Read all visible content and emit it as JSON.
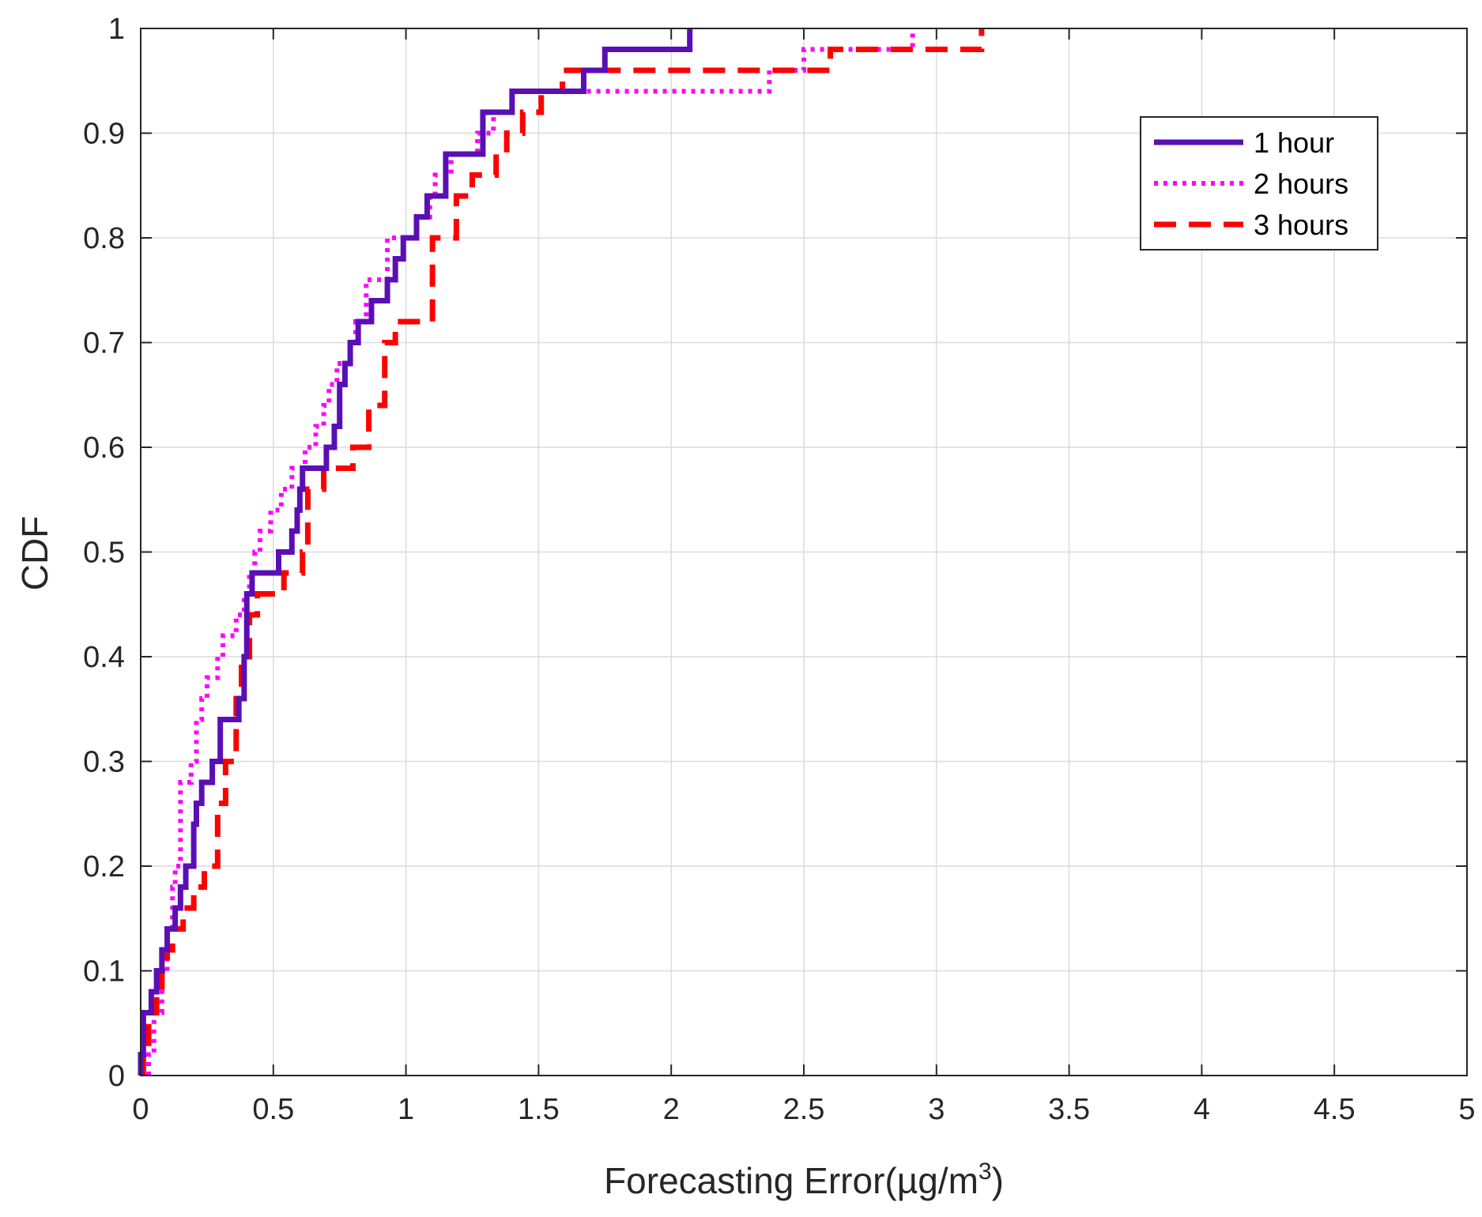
{
  "chart_data": {
    "type": "line",
    "step": true,
    "title": "",
    "xlabel": "Forecasting Error(µg/m",
    "xlabel_superscript": "3",
    "xlabel_suffix": ")",
    "ylabel": "CDF",
    "xlim": [
      0,
      5
    ],
    "ylim": [
      0,
      1
    ],
    "xticks": [
      0,
      0.5,
      1,
      1.5,
      2,
      2.5,
      3,
      3.5,
      4,
      4.5,
      5
    ],
    "xtick_labels": [
      "0",
      "0.5",
      "1",
      "1.5",
      "2",
      "2.5",
      "3",
      "3.5",
      "4",
      "4.5",
      "5"
    ],
    "yticks": [
      0,
      0.1,
      0.2,
      0.3,
      0.4,
      0.5,
      0.6,
      0.7,
      0.8,
      0.9,
      1
    ],
    "ytick_labels": [
      "0",
      "0.1",
      "0.2",
      "0.3",
      "0.4",
      "0.5",
      "0.6",
      "0.7",
      "0.8",
      "0.9",
      "1"
    ],
    "grid": true,
    "legend": {
      "position": "top-right"
    },
    "series": [
      {
        "name": "1 hour",
        "color": "#5a0fb4",
        "style": "solid",
        "x": [
          0,
          0.01,
          0.04,
          0.06,
          0.08,
          0.1,
          0.13,
          0.15,
          0.17,
          0.2,
          0.21,
          0.23,
          0.27,
          0.3,
          0.37,
          0.39,
          0.4,
          0.42,
          0.52,
          0.57,
          0.59,
          0.6,
          0.61,
          0.7,
          0.73,
          0.75,
          0.77,
          0.79,
          0.82,
          0.87,
          0.93,
          0.96,
          0.99,
          1.04,
          1.08,
          1.15,
          1.29,
          1.4,
          1.45,
          1.67,
          1.75,
          1.97,
          2.07
        ],
        "y": [
          0.02,
          0.06,
          0.08,
          0.1,
          0.12,
          0.14,
          0.16,
          0.18,
          0.2,
          0.24,
          0.26,
          0.28,
          0.3,
          0.34,
          0.36,
          0.4,
          0.46,
          0.48,
          0.5,
          0.52,
          0.54,
          0.56,
          0.58,
          0.6,
          0.62,
          0.66,
          0.68,
          0.7,
          0.72,
          0.74,
          0.76,
          0.78,
          0.8,
          0.82,
          0.84,
          0.88,
          0.92,
          0.94,
          0.94,
          0.96,
          0.98,
          0.98,
          1.0
        ]
      },
      {
        "name": "2 hours",
        "color": "#ff00ff",
        "style": "dotted",
        "x": [
          0.03,
          0.05,
          0.08,
          0.1,
          0.12,
          0.13,
          0.15,
          0.19,
          0.21,
          0.23,
          0.25,
          0.29,
          0.31,
          0.36,
          0.39,
          0.41,
          0.43,
          0.45,
          0.49,
          0.53,
          0.57,
          0.62,
          0.66,
          0.69,
          0.71,
          0.74,
          0.79,
          0.81,
          0.85,
          0.93,
          1.04,
          1.09,
          1.11,
          1.17,
          1.27,
          1.33,
          1.4,
          2.29,
          2.37,
          2.5,
          2.91
        ],
        "y": [
          0.02,
          0.06,
          0.1,
          0.14,
          0.18,
          0.2,
          0.28,
          0.3,
          0.34,
          0.36,
          0.38,
          0.4,
          0.42,
          0.44,
          0.46,
          0.48,
          0.5,
          0.52,
          0.54,
          0.56,
          0.58,
          0.6,
          0.62,
          0.64,
          0.66,
          0.68,
          0.7,
          0.72,
          0.76,
          0.8,
          0.82,
          0.84,
          0.86,
          0.88,
          0.9,
          0.92,
          0.94,
          0.94,
          0.96,
          0.98,
          1.0
        ]
      },
      {
        "name": "3 hours",
        "color": "#ff0000",
        "style": "dashed",
        "x": [
          0.01,
          0.03,
          0.06,
          0.08,
          0.1,
          0.12,
          0.16,
          0.2,
          0.24,
          0.29,
          0.32,
          0.36,
          0.38,
          0.41,
          0.44,
          0.54,
          0.61,
          0.63,
          0.69,
          0.8,
          0.86,
          0.92,
          0.96,
          1.1,
          1.13,
          1.19,
          1.25,
          1.34,
          1.38,
          1.44,
          1.51,
          1.59,
          2.6,
          3.17
        ],
        "y": [
          0.02,
          0.06,
          0.08,
          0.1,
          0.12,
          0.14,
          0.16,
          0.18,
          0.2,
          0.26,
          0.3,
          0.36,
          0.4,
          0.44,
          0.46,
          0.48,
          0.5,
          0.56,
          0.58,
          0.6,
          0.64,
          0.7,
          0.72,
          0.8,
          0.8,
          0.84,
          0.86,
          0.88,
          0.9,
          0.92,
          0.94,
          0.96,
          0.98,
          1.0
        ]
      }
    ]
  }
}
